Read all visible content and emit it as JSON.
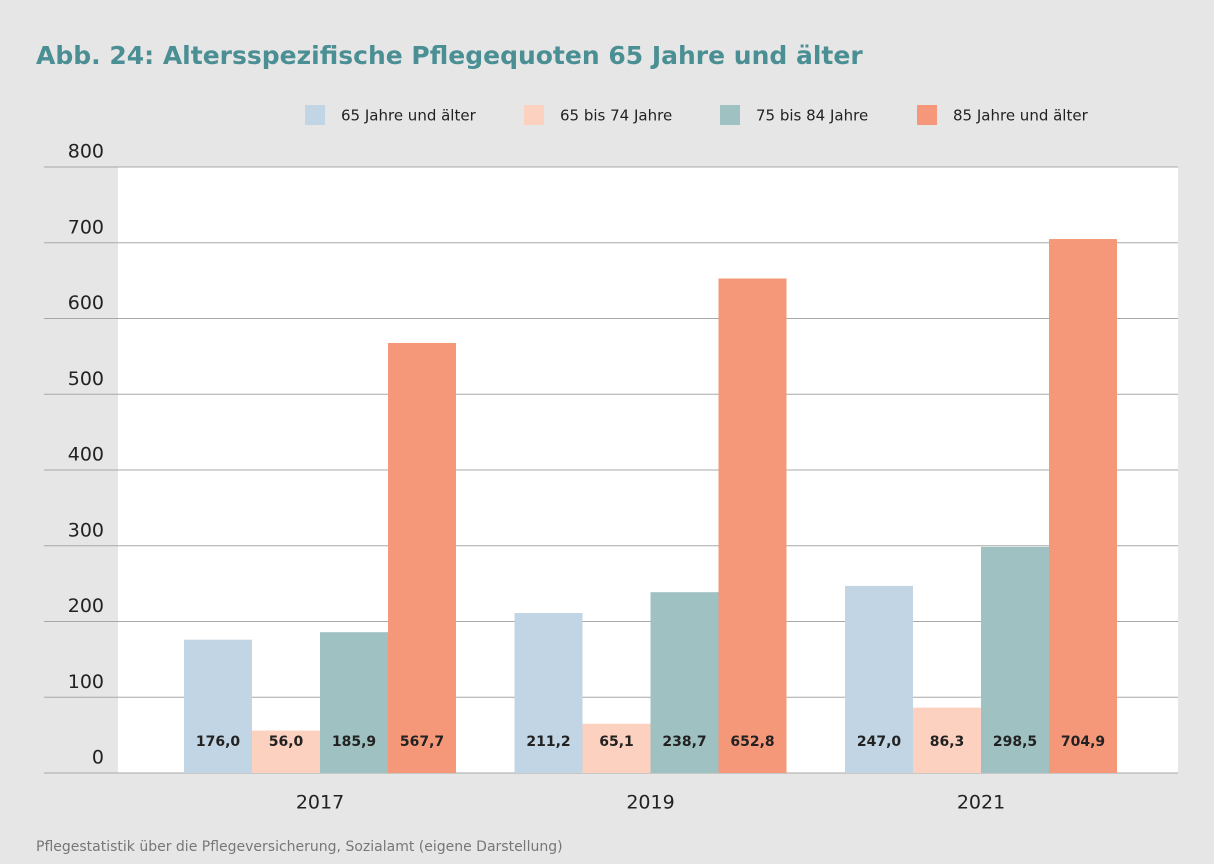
{
  "chart_data": {
    "type": "bar",
    "title": "Abb. 24: Altersspezifische Pflegequoten 65 Jahre und älter",
    "source": "Pflegestatistik über die Pflegeversicherung, Sozialamt (eigene Darstellung)",
    "categories": [
      "2017",
      "2019",
      "2021"
    ],
    "series": [
      {
        "name": "65 Jahre und älter",
        "color": "#c2d5e4",
        "values": [
          176.0,
          211.2,
          247.0
        ],
        "value_labels": [
          "176,0",
          "211,2",
          "247,0"
        ]
      },
      {
        "name": "65 bis 74 Jahre",
        "color": "#fcd1bf",
        "values": [
          56.0,
          65.1,
          86.3
        ],
        "value_labels": [
          "56,0",
          "65,1",
          "86,3"
        ]
      },
      {
        "name": "75 bis 84 Jahre",
        "color": "#9fc1c1",
        "values": [
          185.9,
          238.7,
          298.5
        ],
        "value_labels": [
          "185,9",
          "238,7",
          "298,5"
        ]
      },
      {
        "name": "85 Jahre und älter",
        "color": "#f59879",
        "values": [
          567.7,
          652.8,
          704.9
        ],
        "value_labels": [
          "567,7",
          "652,8",
          "704,9"
        ]
      }
    ],
    "ylim": [
      0,
      800
    ],
    "yticks": [
      0,
      100,
      200,
      300,
      400,
      500,
      600,
      700,
      800
    ],
    "grid": true,
    "legend": "top"
  }
}
